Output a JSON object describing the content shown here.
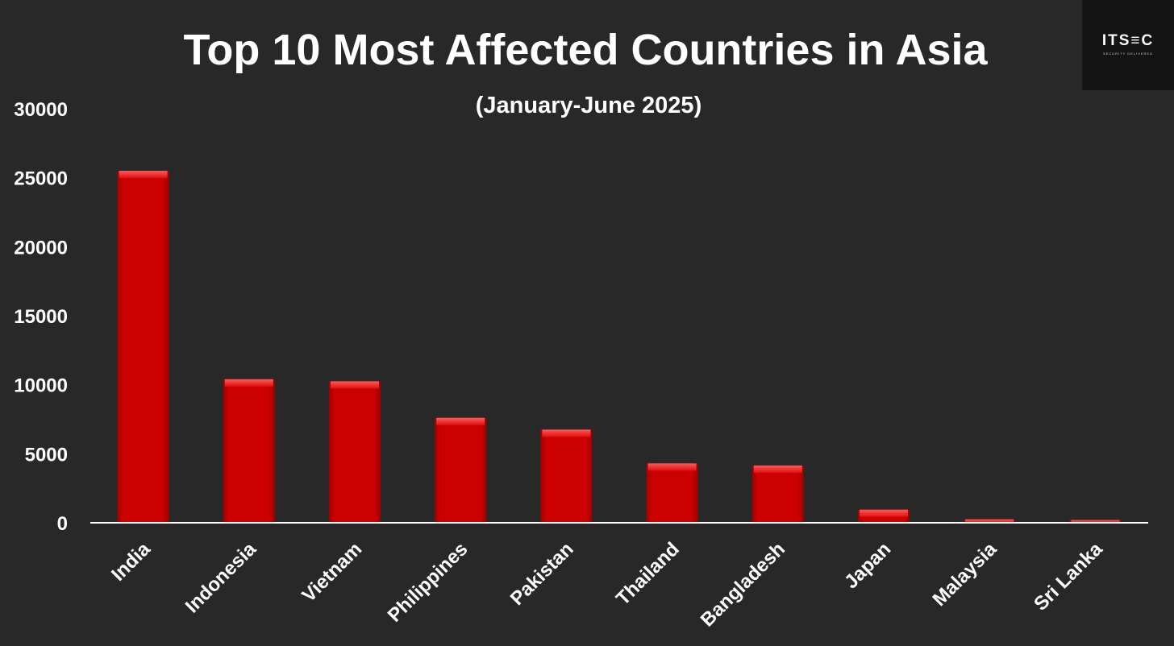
{
  "logo": {
    "text": "ITS≡C",
    "tagline": "SECURITY DELIVERED"
  },
  "chart_data": {
    "type": "bar",
    "title": "Top 10 Most Affected Countries in Asia",
    "subtitle": "(January-June 2025)",
    "xlabel": "",
    "ylabel": "",
    "categories": [
      "India",
      "Indonesia",
      "Vietnam",
      "Philippines",
      "Pakistan",
      "Thailand",
      "Bangladesh",
      "Japan",
      "Malaysia",
      "Sri Lanka"
    ],
    "values": [
      25500,
      10400,
      10250,
      7600,
      6750,
      4300,
      4150,
      950,
      250,
      200
    ],
    "ylim": [
      0,
      30000
    ],
    "yticks": [
      "0",
      "5000",
      "10000",
      "15000",
      "20000",
      "25000",
      "30000"
    ],
    "grid": false,
    "legend": "none",
    "colors": {
      "background": "#282828",
      "bar": "#cc0000",
      "bar_top": "#ff3a3a",
      "axis": "#ffffff",
      "text": "#ffffff"
    }
  }
}
